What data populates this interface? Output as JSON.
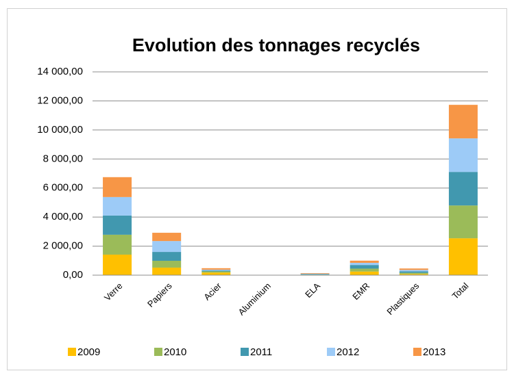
{
  "chart_data": {
    "type": "bar",
    "stacked": true,
    "title": "Evolution des tonnages recyclés",
    "categories": [
      "Verre",
      "Papiers",
      "Acier",
      "Aluminium",
      "ELA",
      "EMR",
      "Plastiques",
      "Total"
    ],
    "series": [
      {
        "name": "2009",
        "color": "#ffc000",
        "values": [
          1415,
          520,
          180,
          4,
          20,
          250,
          80,
          2540
        ]
      },
      {
        "name": "2010",
        "color": "#9bbb59",
        "values": [
          1370,
          470,
          80,
          4,
          20,
          200,
          80,
          2260
        ]
      },
      {
        "name": "2011",
        "color": "#4198af",
        "values": [
          1320,
          610,
          60,
          4,
          30,
          250,
          100,
          2310
        ]
      },
      {
        "name": "2012",
        "color": "#9dcbf7",
        "values": [
          1275,
          750,
          60,
          4,
          30,
          150,
          100,
          2310
        ]
      },
      {
        "name": "2013",
        "color": "#f79646",
        "values": [
          1370,
          570,
          100,
          4,
          40,
          150,
          100,
          2310
        ]
      }
    ],
    "ylim": [
      0,
      14000
    ],
    "yticks": [
      {
        "value": 0,
        "label": "0,00"
      },
      {
        "value": 2000,
        "label": "2 000,00"
      },
      {
        "value": 4000,
        "label": "4 000,00"
      },
      {
        "value": 6000,
        "label": "6 000,00"
      },
      {
        "value": 8000,
        "label": "8 000,00"
      },
      {
        "value": 10000,
        "label": "10 000,00"
      },
      {
        "value": 12000,
        "label": "12 000,00"
      },
      {
        "value": 14000,
        "label": "14 000,00"
      }
    ],
    "grid": true,
    "legend": "bottom"
  }
}
